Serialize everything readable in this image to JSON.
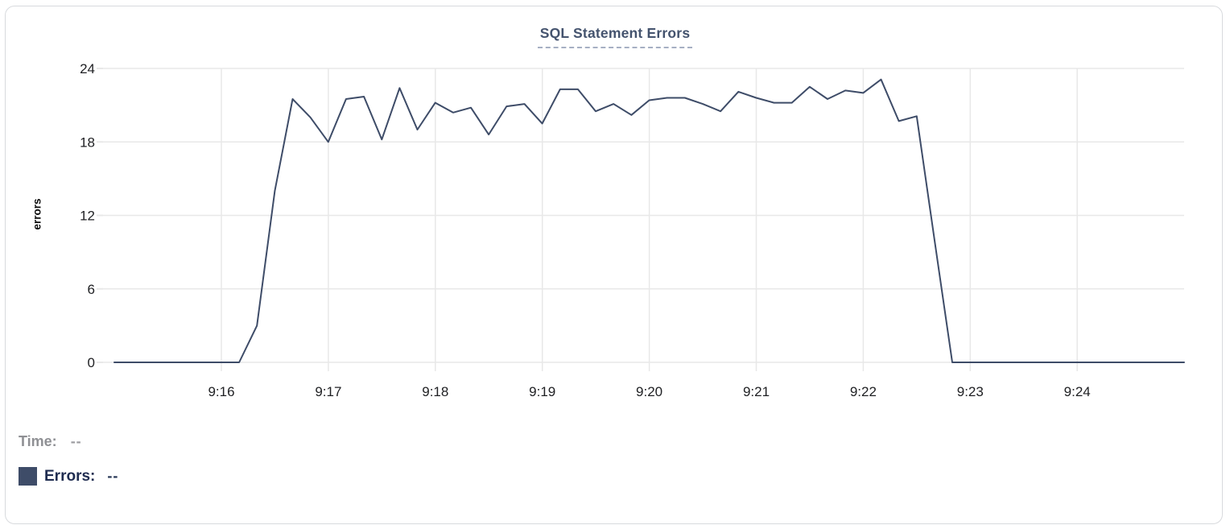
{
  "chart_data": {
    "type": "line",
    "title": "SQL Statement Errors",
    "xlabel": "",
    "ylabel": "errors",
    "ylim": [
      0,
      24
    ],
    "yticks": [
      0,
      6,
      12,
      18,
      24
    ],
    "xticks": [
      "9:16",
      "9:17",
      "9:18",
      "9:19",
      "9:20",
      "9:21",
      "9:22",
      "9:23",
      "9:24"
    ],
    "x_start": "9:15:00",
    "x_end": "9:25:00",
    "sample_interval_seconds": 10,
    "grid": true,
    "legend_position": "bottom-left",
    "series": [
      {
        "name": "Errors",
        "color": "#3e4c68",
        "values": [
          0,
          0,
          0,
          0,
          0,
          0,
          0,
          0,
          3,
          14,
          21.5,
          20,
          18,
          21.5,
          21.7,
          18.2,
          22.4,
          19,
          21.2,
          20.4,
          20.8,
          18.6,
          20.9,
          21.1,
          19.5,
          22.3,
          22.3,
          20.5,
          21.1,
          20.2,
          21.4,
          21.6,
          21.6,
          21.1,
          20.5,
          22.1,
          21.6,
          21.2,
          21.2,
          22.5,
          21.5,
          22.2,
          22,
          23.1,
          19.7,
          20.1,
          10,
          0,
          0,
          0,
          0,
          0,
          0,
          0,
          0,
          0,
          0,
          0,
          0,
          0,
          0
        ]
      }
    ]
  },
  "tooltip": {
    "time_label": "Time:",
    "time_value": "--",
    "errors_label": "Errors:",
    "errors_value": "--"
  },
  "colors": {
    "card_border": "#d8dadd",
    "grid": "#e8e8e8",
    "axis_text": "#202124",
    "title": "#44536e",
    "title_underline": "#a6b0c3",
    "legend_time": "#8f9094",
    "legend_errors": "#1f2c50"
  }
}
